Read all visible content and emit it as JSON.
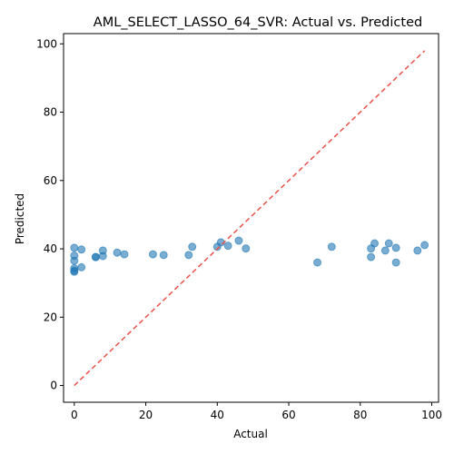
{
  "chart_data": {
    "type": "scatter",
    "title": "AML_SELECT_LASSO_64_SVR: Actual vs. Predicted",
    "xlabel": "Actual",
    "ylabel": "Predicted",
    "xlim": [
      -3,
      101.9
    ],
    "ylim": [
      -4.9,
      103
    ],
    "x_ticks": [
      0,
      20,
      40,
      60,
      80,
      100
    ],
    "y_ticks": [
      0,
      20,
      40,
      60,
      80,
      100
    ],
    "x_tick_labels": [
      "0",
      "20",
      "40",
      "60",
      "80",
      "100"
    ],
    "y_tick_labels": [
      "0",
      "20",
      "40",
      "60",
      "80",
      "100"
    ],
    "grid": false,
    "series": [
      {
        "color": "#1f77b4",
        "x": [
          0,
          0,
          0,
          0,
          0,
          0,
          2,
          2,
          6,
          6,
          8,
          8,
          12,
          14,
          22,
          25,
          32,
          33,
          40,
          41,
          43,
          46,
          48,
          68,
          72,
          83,
          83,
          84,
          87,
          88,
          90,
          90,
          96,
          98
        ],
        "y": [
          40.3,
          38.0,
          36.5,
          34.3,
          33.6,
          33.3,
          39.8,
          34.6,
          37.6,
          37.6,
          39.5,
          37.9,
          38.9,
          38.4,
          38.4,
          38.2,
          38.2,
          40.6,
          40.6,
          41.9,
          40.9,
          42.4,
          40.1,
          36.0,
          40.6,
          40.1,
          37.6,
          41.6,
          39.5,
          41.6,
          40.3,
          36.0,
          39.5,
          41.1
        ]
      }
    ],
    "reference_line": {
      "from": [
        0,
        0
      ],
      "to": [
        98,
        98
      ],
      "color": "#e8524a"
    }
  }
}
